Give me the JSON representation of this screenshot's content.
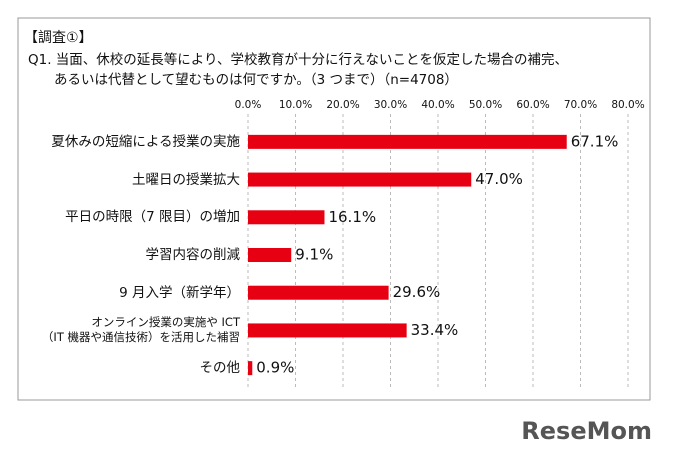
{
  "chart_data": {
    "type": "hbar",
    "title": "【調査①】",
    "subtitle": [
      "Q1. 当面、休校の延長等により、学校教育が十分に行えないことを仮定した場合の補完、",
      "あるいは代替として望むものは何ですか。（3 つまで）（n=4708）"
    ],
    "categories": [
      "夏休みの短縮による授業の実施",
      "土曜日の授業拡大",
      "平日の時限（7 限目）の増加",
      "学習内容の削減",
      "9 月入学（新学年）",
      "オンライン授業の実施や ICT\n（IT 機器や通信技術）を活用した補習",
      "その他"
    ],
    "values": [
      67.1,
      47.0,
      16.1,
      9.1,
      29.6,
      33.4,
      0.9
    ],
    "value_labels": [
      "67.1%",
      "47.0%",
      "16.1%",
      "9.1%",
      "29.6%",
      "33.4%",
      "0.9%"
    ],
    "color": "#e60012",
    "xlim": [
      0,
      80
    ],
    "xticks": [
      {
        "value": 0,
        "label": "0.0%"
      },
      {
        "value": 10,
        "label": "10.0%"
      },
      {
        "value": 20,
        "label": "20.0%"
      },
      {
        "value": 30,
        "label": "30.0%"
      },
      {
        "value": 40,
        "label": "40.0%"
      },
      {
        "value": 50,
        "label": "50.0%"
      },
      {
        "value": 60,
        "label": "60.0%"
      },
      {
        "value": 70,
        "label": "70.0%"
      },
      {
        "value": 80,
        "label": "80.0%"
      }
    ],
    "grid": true,
    "logo": "ReseMom"
  }
}
